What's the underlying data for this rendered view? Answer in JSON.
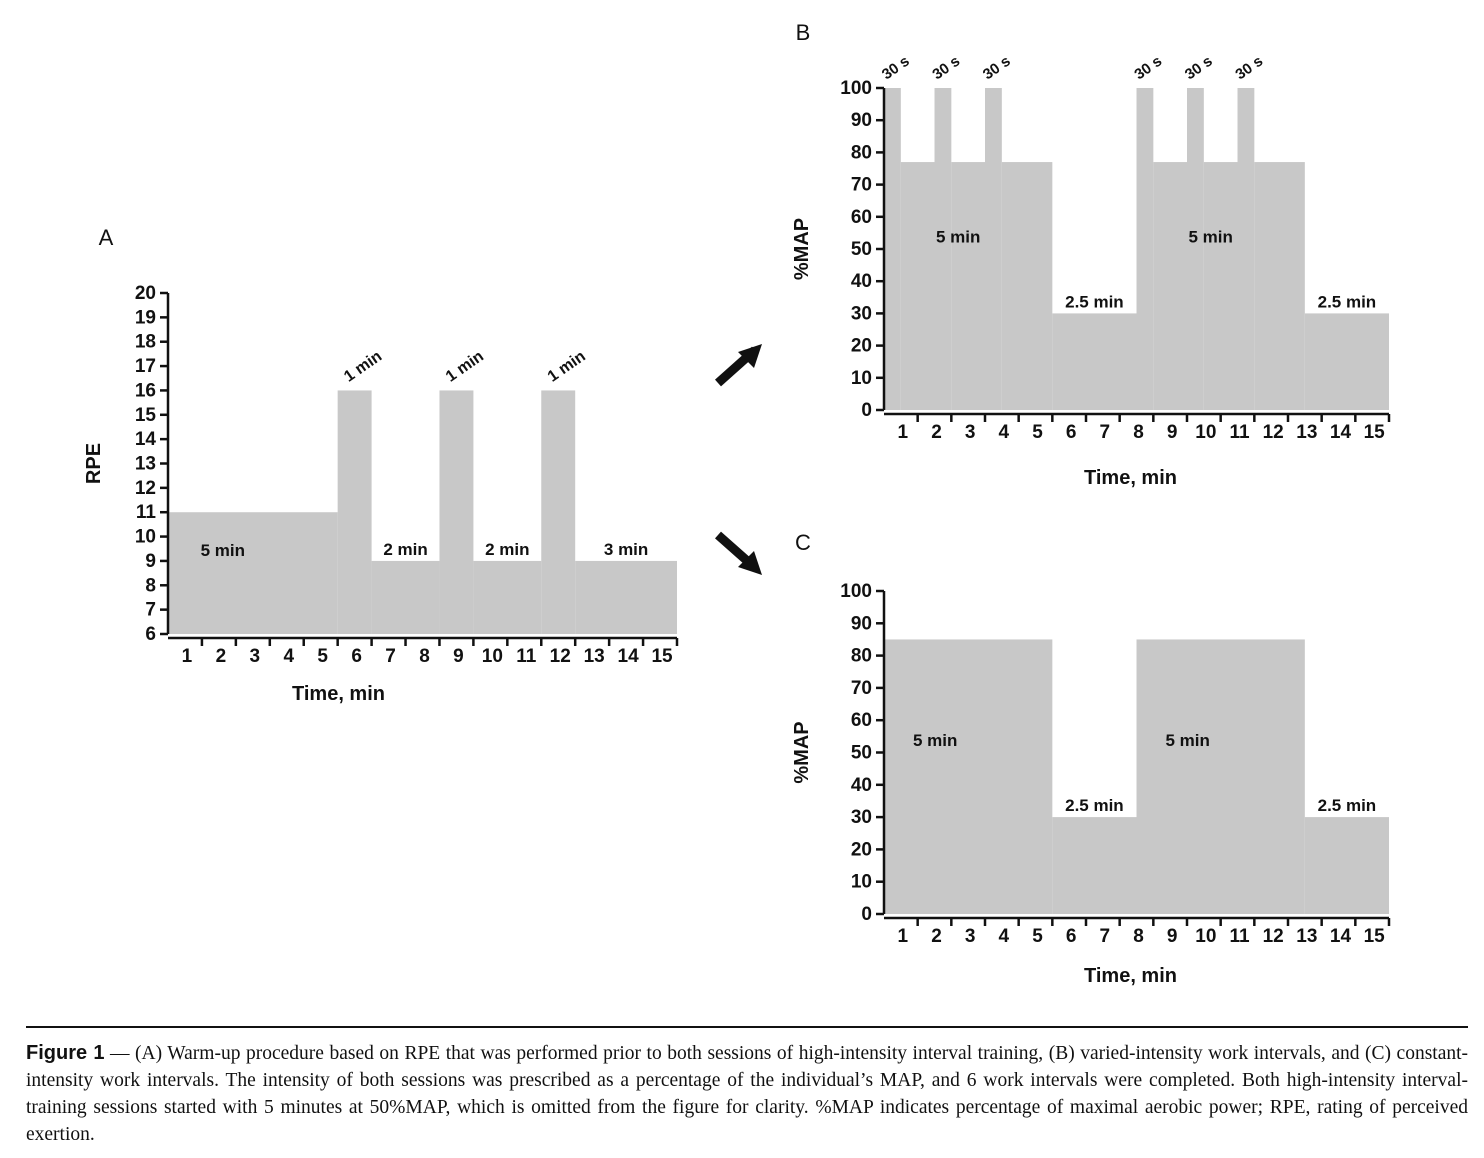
{
  "chart_data": [
    {
      "id": "A",
      "panel_label": "A",
      "type": "step",
      "xlabel": "Time, min",
      "ylabel": "RPE",
      "ylim": [
        6,
        20
      ],
      "xlim": [
        0,
        15
      ],
      "x_ticks": [
        "1",
        "2",
        "3",
        "4",
        "5",
        "6",
        "7",
        "8",
        "9",
        "10",
        "11",
        "12",
        "13",
        "14",
        "15"
      ],
      "y_ticks": [
        6,
        7,
        8,
        9,
        10,
        11,
        12,
        13,
        14,
        15,
        16,
        17,
        18,
        19,
        20
      ],
      "segments": [
        {
          "start": 0,
          "end": 5,
          "value": 11,
          "label": "5 min"
        },
        {
          "start": 5,
          "end": 6,
          "value": 16,
          "label": "1 min"
        },
        {
          "start": 6,
          "end": 8,
          "value": 9,
          "label": "2 min"
        },
        {
          "start": 8,
          "end": 9,
          "value": 16,
          "label": "1 min"
        },
        {
          "start": 9,
          "end": 11,
          "value": 9,
          "label": "2 min"
        },
        {
          "start": 11,
          "end": 12,
          "value": 16,
          "label": "1 min"
        },
        {
          "start": 12,
          "end": 15,
          "value": 9,
          "label": "3 min"
        }
      ]
    },
    {
      "id": "B",
      "panel_label": "B",
      "type": "step",
      "xlabel": "Time, min",
      "ylabel": "%MAP",
      "ylim": [
        0,
        100
      ],
      "xlim": [
        0,
        15
      ],
      "x_ticks": [
        "1",
        "2",
        "3",
        "4",
        "5",
        "6",
        "7",
        "8",
        "9",
        "10",
        "11",
        "12",
        "13",
        "14",
        "15"
      ],
      "y_ticks": [
        0,
        10,
        20,
        30,
        40,
        50,
        60,
        70,
        80,
        90,
        100
      ],
      "segments": [
        {
          "start": 0,
          "end": 0.5,
          "value": 100,
          "label": "30 s"
        },
        {
          "start": 0.5,
          "end": 1.5,
          "value": 77,
          "label": ""
        },
        {
          "start": 1.5,
          "end": 2.0,
          "value": 100,
          "label": "30 s"
        },
        {
          "start": 2.0,
          "end": 3.0,
          "value": 77,
          "label": ""
        },
        {
          "start": 3.0,
          "end": 3.5,
          "value": 100,
          "label": "30 s"
        },
        {
          "start": 3.5,
          "end": 5.0,
          "value": 77,
          "label": ""
        },
        {
          "start": 5.0,
          "end": 7.5,
          "value": 30,
          "label": "2.5 min"
        },
        {
          "start": 7.5,
          "end": 8.0,
          "value": 100,
          "label": "30 s"
        },
        {
          "start": 8.0,
          "end": 9.0,
          "value": 77,
          "label": ""
        },
        {
          "start": 9.0,
          "end": 9.5,
          "value": 100,
          "label": "30 s"
        },
        {
          "start": 9.5,
          "end": 10.5,
          "value": 77,
          "label": ""
        },
        {
          "start": 10.5,
          "end": 11.0,
          "value": 100,
          "label": "30 s"
        },
        {
          "start": 11.0,
          "end": 12.5,
          "value": 77,
          "label": ""
        },
        {
          "start": 12.5,
          "end": 15.0,
          "value": 30,
          "label": "2.5 min"
        }
      ],
      "block_labels": [
        {
          "x": 2.5,
          "value": 52,
          "label": "5 min"
        },
        {
          "x": 10.0,
          "value": 52,
          "label": "5 min"
        }
      ]
    },
    {
      "id": "C",
      "panel_label": "C",
      "type": "step",
      "xlabel": "Time, min",
      "ylabel": "%MAP",
      "ylim": [
        0,
        100
      ],
      "xlim": [
        0,
        15
      ],
      "x_ticks": [
        "1",
        "2",
        "3",
        "4",
        "5",
        "6",
        "7",
        "8",
        "9",
        "10",
        "11",
        "12",
        "13",
        "14",
        "15"
      ],
      "y_ticks": [
        0,
        10,
        20,
        30,
        40,
        50,
        60,
        70,
        80,
        90,
        100
      ],
      "segments": [
        {
          "start": 0,
          "end": 5.0,
          "value": 85,
          "label": "5 min"
        },
        {
          "start": 5.0,
          "end": 7.5,
          "value": 30,
          "label": "2.5 min"
        },
        {
          "start": 7.5,
          "end": 12.5,
          "value": 85,
          "label": "5 min"
        },
        {
          "start": 12.5,
          "end": 15.0,
          "value": 30,
          "label": "2.5 min"
        }
      ]
    }
  ],
  "colors": {
    "fill": "#c8c8c8",
    "axis": "#111111",
    "arrow": "#111111"
  },
  "caption": {
    "figure_label": "Figure 1",
    "dash": "—",
    "text": "(A) Warm-up procedure based on RPE that was performed prior to both sessions of high-intensity interval training, (B) varied-intensity work intervals, and (C) constant-intensity work intervals. The intensity of both sessions was prescribed as a percentage of the individual’s MAP, and 6 work intervals were completed. Both high-intensity interval-training sessions started with 5 minutes at 50%MAP, which is omitted from the figure for clarity. %MAP indicates percentage of maximal aerobic power; RPE, rating of perceived exertion."
  }
}
